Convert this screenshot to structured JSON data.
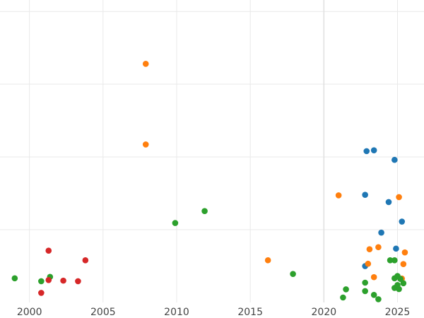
{
  "chart_data": {
    "type": "scatter",
    "title": "",
    "xlabel": "",
    "ylabel": "",
    "xlim": [
      1998,
      2026.8
    ],
    "ylim": [
      0,
      10.2
    ],
    "grid": true,
    "x_ticks": [
      2000,
      2005,
      2010,
      2015,
      2020,
      2025
    ],
    "x_tick_labels": [
      "2000",
      "2005",
      "2010",
      "2015",
      "2020",
      "2025"
    ],
    "y_gridlines": [
      2.5,
      5,
      7.5,
      10
    ],
    "x_gridline_emphasis": 2020,
    "colors": {
      "blue": "#1f77b4",
      "orange": "#ff7f0e",
      "green": "#2ca02c",
      "red": "#d62728"
    },
    "series": [
      {
        "name": "blue",
        "color": "#1f77b4",
        "points": [
          {
            "x": 2022.9,
            "y": 5.2
          },
          {
            "x": 2023.4,
            "y": 5.23
          },
          {
            "x": 2024.8,
            "y": 4.9
          },
          {
            "x": 2022.8,
            "y": 3.7
          },
          {
            "x": 2024.4,
            "y": 3.45
          },
          {
            "x": 2025.3,
            "y": 2.78
          },
          {
            "x": 2023.9,
            "y": 2.4
          },
          {
            "x": 2024.9,
            "y": 1.85
          },
          {
            "x": 2022.8,
            "y": 1.25
          }
        ]
      },
      {
        "name": "orange",
        "color": "#ff7f0e",
        "points": [
          {
            "x": 2007.9,
            "y": 8.2
          },
          {
            "x": 2007.9,
            "y": 5.43
          },
          {
            "x": 2021.0,
            "y": 3.68
          },
          {
            "x": 2025.1,
            "y": 3.62
          },
          {
            "x": 2016.2,
            "y": 1.45
          },
          {
            "x": 2023.7,
            "y": 1.9
          },
          {
            "x": 2023.1,
            "y": 1.83
          },
          {
            "x": 2025.5,
            "y": 1.72
          },
          {
            "x": 2023.0,
            "y": 1.33
          },
          {
            "x": 2025.4,
            "y": 1.32
          },
          {
            "x": 2023.4,
            "y": 0.87
          },
          {
            "x": 2025.3,
            "y": 0.82
          }
        ]
      },
      {
        "name": "green",
        "color": "#2ca02c",
        "points": [
          {
            "x": 1999.0,
            "y": 0.83
          },
          {
            "x": 2000.8,
            "y": 0.73
          },
          {
            "x": 2001.4,
            "y": 0.88
          },
          {
            "x": 2009.9,
            "y": 2.73
          },
          {
            "x": 2011.9,
            "y": 3.14
          },
          {
            "x": 2017.9,
            "y": 0.98
          },
          {
            "x": 2021.3,
            "y": 0.17
          },
          {
            "x": 2021.5,
            "y": 0.45
          },
          {
            "x": 2022.8,
            "y": 0.68
          },
          {
            "x": 2022.8,
            "y": 0.39
          },
          {
            "x": 2023.4,
            "y": 0.26
          },
          {
            "x": 2023.7,
            "y": 0.11
          },
          {
            "x": 2024.5,
            "y": 1.45
          },
          {
            "x": 2024.8,
            "y": 1.45
          },
          {
            "x": 2024.8,
            "y": 0.83
          },
          {
            "x": 2025.0,
            "y": 0.91
          },
          {
            "x": 2025.2,
            "y": 0.81
          },
          {
            "x": 2024.8,
            "y": 0.5
          },
          {
            "x": 2025.1,
            "y": 0.46
          },
          {
            "x": 2025.0,
            "y": 0.6
          },
          {
            "x": 2025.4,
            "y": 0.66
          }
        ]
      },
      {
        "name": "red",
        "color": "#d62728",
        "points": [
          {
            "x": 2001.3,
            "y": 1.78
          },
          {
            "x": 2003.8,
            "y": 1.45
          },
          {
            "x": 2001.3,
            "y": 0.77
          },
          {
            "x": 2002.3,
            "y": 0.75
          },
          {
            "x": 2003.3,
            "y": 0.73
          },
          {
            "x": 2000.8,
            "y": 0.33
          }
        ]
      }
    ]
  }
}
